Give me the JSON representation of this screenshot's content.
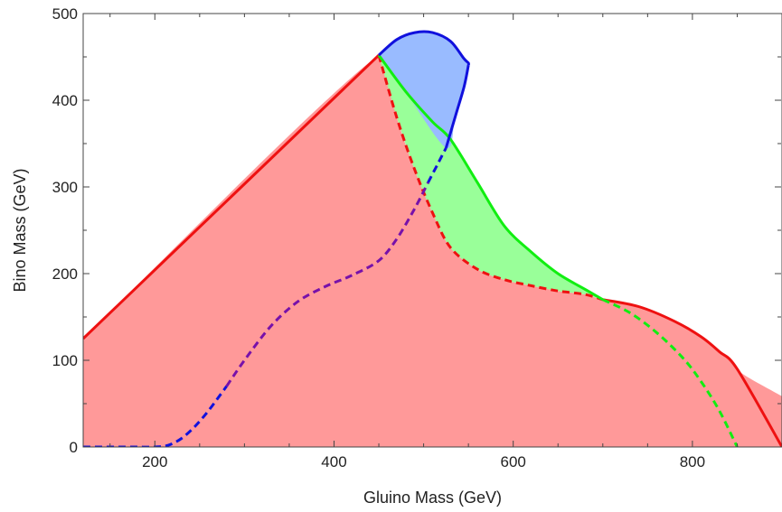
{
  "chart_data": {
    "type": "area",
    "xlabel": "Gluino Mass (GeV)",
    "ylabel": "Bino Mass (GeV)",
    "xlim": [
      120,
      900
    ],
    "ylim": [
      0,
      500
    ],
    "xticks": [
      200,
      400,
      600,
      800
    ],
    "yticks": [
      0,
      100,
      200,
      300,
      400,
      500
    ],
    "xtick_labels": [
      "200",
      "400",
      "600",
      "800"
    ],
    "ytick_labels": [
      "0",
      "100",
      "200",
      "300",
      "400",
      "500"
    ],
    "grid": false,
    "legend": "none",
    "colors": {
      "red": "#ee1111",
      "red_fill": "#ff9999",
      "green": "#11ee11",
      "green_fill": "#99ff99",
      "blue": "#1111dd",
      "blue_fill": "#99bbff",
      "purple": "#7711aa"
    },
    "series": [
      {
        "color": "red",
        "style": "solid",
        "x": [
          120,
          450
        ],
        "y": [
          125,
          452
        ]
      },
      {
        "color": "red",
        "style": "solid",
        "x": [
          700,
          740,
          780,
          810,
          830,
          850,
          900
        ],
        "y": [
          170,
          162,
          145,
          127,
          110,
          90,
          0
        ]
      },
      {
        "color": "red",
        "style": "dashed",
        "x": [
          450,
          470,
          490,
          510,
          530,
          560,
          590,
          620,
          650,
          680,
          700
        ],
        "y": [
          452,
          380,
          320,
          270,
          230,
          205,
          193,
          186,
          180,
          176,
          170
        ]
      },
      {
        "color": "green",
        "style": "solid",
        "x": [
          450,
          480,
          510,
          530,
          560,
          590,
          620,
          650,
          680,
          700
        ],
        "y": [
          452,
          410,
          375,
          355,
          305,
          255,
          225,
          200,
          182,
          170
        ]
      },
      {
        "color": "green",
        "style": "dashed",
        "x": [
          700,
          730,
          760,
          790,
          810,
          830,
          850
        ],
        "y": [
          170,
          155,
          132,
          102,
          75,
          42,
          0
        ]
      },
      {
        "color": "blue",
        "style": "solid",
        "x": [
          450,
          470,
          490,
          510,
          530,
          545,
          550,
          550
        ],
        "y": [
          452,
          470,
          478,
          478,
          468,
          448,
          443,
          440
        ]
      },
      {
        "color": "blue",
        "style": "solid",
        "x": [
          550,
          545,
          535,
          525
        ],
        "y": [
          440,
          415,
          380,
          345
        ]
      },
      {
        "color": "blue",
        "style": "dashed",
        "x": [
          120,
          140,
          160,
          180,
          200,
          215,
          230,
          245,
          260,
          280
        ],
        "y": [
          0,
          0,
          0,
          0,
          0,
          2,
          10,
          24,
          42,
          70
        ]
      },
      {
        "color": "purple",
        "style": "dashed",
        "x": [
          280,
          300,
          330,
          360,
          390,
          420,
          450,
          470,
          490,
          505
        ],
        "y": [
          70,
          100,
          140,
          168,
          185,
          198,
          215,
          240,
          275,
          305
        ]
      },
      {
        "color": "blue",
        "style": "dashed",
        "x": [
          505,
          515,
          525
        ],
        "y": [
          305,
          325,
          345
        ]
      }
    ],
    "regions": [
      {
        "fill": "red_fill",
        "x": [
          120,
          450,
          470,
          490,
          510,
          530,
          560,
          590,
          620,
          650,
          680,
          700,
          740,
          780,
          810,
          830,
          850,
          900,
          120
        ],
        "y": [
          125,
          452,
          380,
          320,
          270,
          230,
          205,
          193,
          186,
          180,
          176,
          170,
          162,
          145,
          127,
          110,
          90,
          0,
          0
        ]
      },
      {
        "fill": "green_fill",
        "x": [
          450,
          480,
          510,
          530,
          560,
          590,
          620,
          650,
          680,
          700,
          680,
          650,
          620,
          590,
          560,
          530,
          510,
          490,
          470
        ],
        "y": [
          452,
          410,
          375,
          355,
          305,
          255,
          225,
          200,
          182,
          170,
          176,
          180,
          186,
          193,
          205,
          230,
          270,
          320,
          380
        ]
      },
      {
        "fill": "blue_fill",
        "x": [
          450,
          470,
          490,
          510,
          530,
          545,
          550,
          550,
          545,
          535,
          525,
          480
        ],
        "y": [
          452,
          470,
          478,
          478,
          468,
          448,
          443,
          440,
          415,
          380,
          345,
          410
        ]
      }
    ]
  }
}
